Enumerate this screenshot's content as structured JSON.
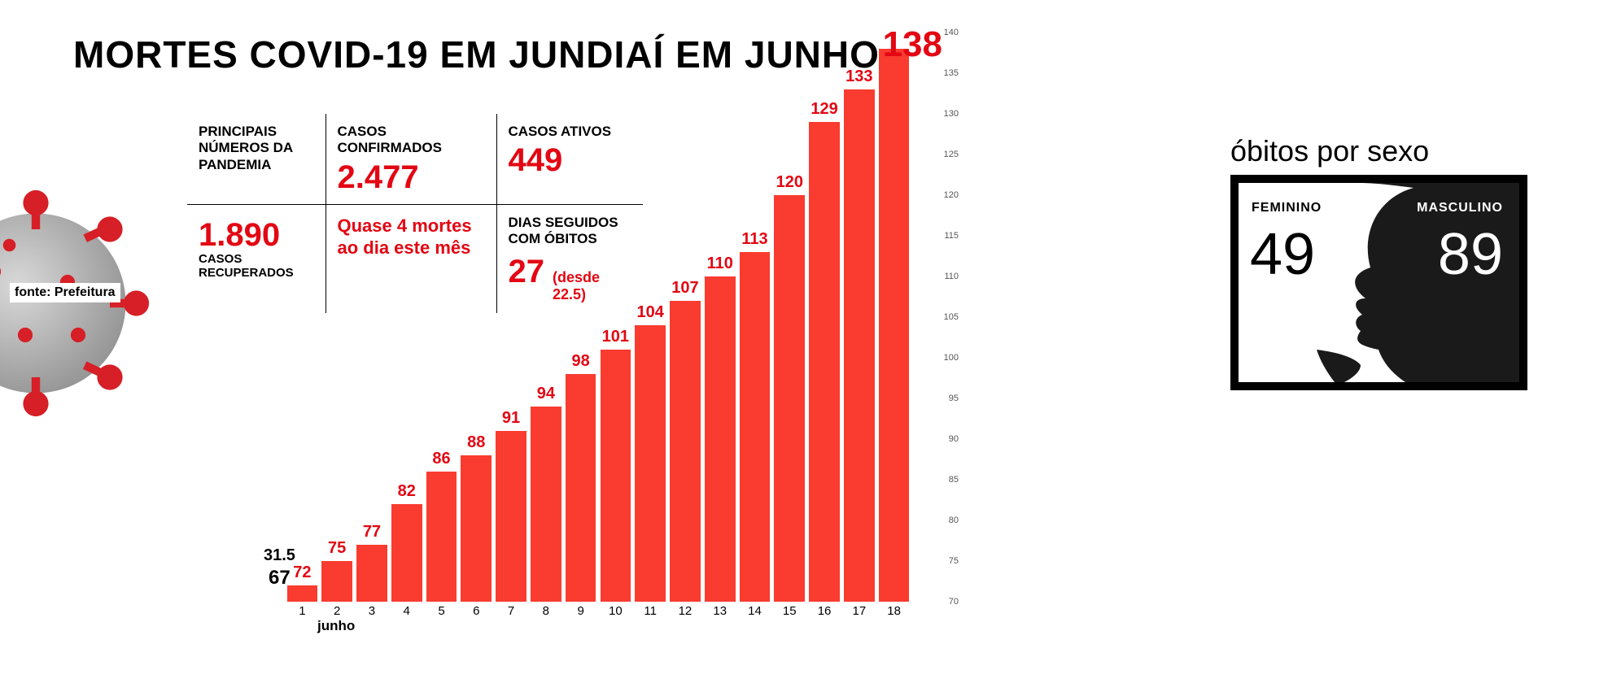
{
  "title": "MORTES COVID-19 EM JUNDIAÍ EM JUNHO",
  "source": "fonte: Prefeitura",
  "stats": {
    "header_label": "PRINCIPAIS NÚMEROS DA PANDEMIA",
    "confirmed_label": "CASOS CONFIRMADOS",
    "confirmed_value": "2.477",
    "active_label": "CASOS ATIVOS",
    "active_value": "449",
    "recovered_value": "1.890",
    "recovered_label": "CASOS RECUPERADOS",
    "note_line1": "Quase 4 mortes",
    "note_line2": "ao dia este mês",
    "streak_label": "DIAS SEGUIDOS COM ÓBITOS",
    "streak_value": "27",
    "streak_since": "(desde 22.5)"
  },
  "chart": {
    "type": "bar",
    "x_title": "junho",
    "categories": [
      "1",
      "2",
      "3",
      "4",
      "5",
      "6",
      "7",
      "8",
      "9",
      "10",
      "11",
      "12",
      "13",
      "14",
      "15",
      "16",
      "17",
      "18"
    ],
    "values": [
      72,
      75,
      77,
      82,
      86,
      88,
      91,
      94,
      98,
      101,
      104,
      107,
      110,
      113,
      120,
      129,
      133,
      138
    ],
    "bar_color": "#fa3b2f",
    "value_label_color": "#e30613",
    "ylim": [
      70,
      140
    ],
    "ytick_step": 5,
    "bar_gap_ratio": 0.12,
    "background_color": "#ffffff",
    "top_value_label": "138",
    "baseline_sub_label": "31.5",
    "baseline_value_label": "67"
  },
  "sex_panel": {
    "title": "óbitos por sexo",
    "female_label": "FEMININO",
    "female_value": "49",
    "male_label": "MASCULINO",
    "male_value": "89",
    "female_color": "#000000",
    "male_color": "#ffffff",
    "box_border_color": "#000000",
    "box_bg": "#ffffff",
    "male_bg": "#1a1a1a"
  },
  "virus_icon": {
    "body_color": "#a8a8a8",
    "spike_color": "#d61f26"
  }
}
